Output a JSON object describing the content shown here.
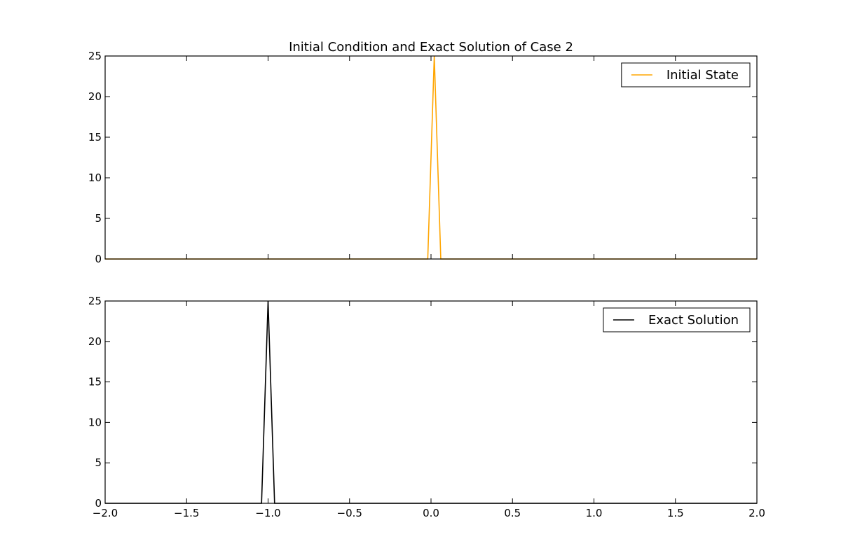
{
  "chart_data": {
    "title": "Initial Condition and Exact Solution of Case 2",
    "subplots": [
      {
        "type": "line",
        "series": [
          {
            "name": "Initial State",
            "color": "#ffa500",
            "x": [
              -2.0,
              -0.02,
              0.02,
              0.06,
              2.0
            ],
            "y": [
              0,
              0,
              25,
              0,
              0
            ]
          }
        ],
        "xlim": [
          -2.0,
          2.0
        ],
        "ylim": [
          0,
          25
        ],
        "xticks": [
          -2.0,
          -1.5,
          -1.0,
          -0.5,
          0.0,
          0.5,
          1.0,
          1.5,
          2.0
        ],
        "xtick_labels_visible": false,
        "yticks": [
          0,
          5,
          10,
          15,
          20,
          25
        ],
        "ytick_labels": [
          "0",
          "5",
          "10",
          "15",
          "20",
          "25"
        ],
        "legend": "top-right",
        "grid": false
      },
      {
        "type": "line",
        "series": [
          {
            "name": "Exact Solution",
            "color": "#000000",
            "x": [
              -2.0,
              -1.04,
              -1.0,
              -0.96,
              2.0
            ],
            "y": [
              0,
              0,
              25,
              0,
              0
            ]
          }
        ],
        "xlim": [
          -2.0,
          2.0
        ],
        "ylim": [
          0,
          25
        ],
        "xticks": [
          -2.0,
          -1.5,
          -1.0,
          -0.5,
          0.0,
          0.5,
          1.0,
          1.5,
          2.0
        ],
        "xtick_labels": [
          "−2.0",
          "−1.5",
          "−1.0",
          "−0.5",
          "0.0",
          "0.5",
          "1.0",
          "1.5",
          "2.0"
        ],
        "xtick_labels_visible": true,
        "yticks": [
          0,
          5,
          10,
          15,
          20,
          25
        ],
        "ytick_labels": [
          "0",
          "5",
          "10",
          "15",
          "20",
          "25"
        ],
        "legend": "top-right",
        "grid": false
      }
    ]
  }
}
